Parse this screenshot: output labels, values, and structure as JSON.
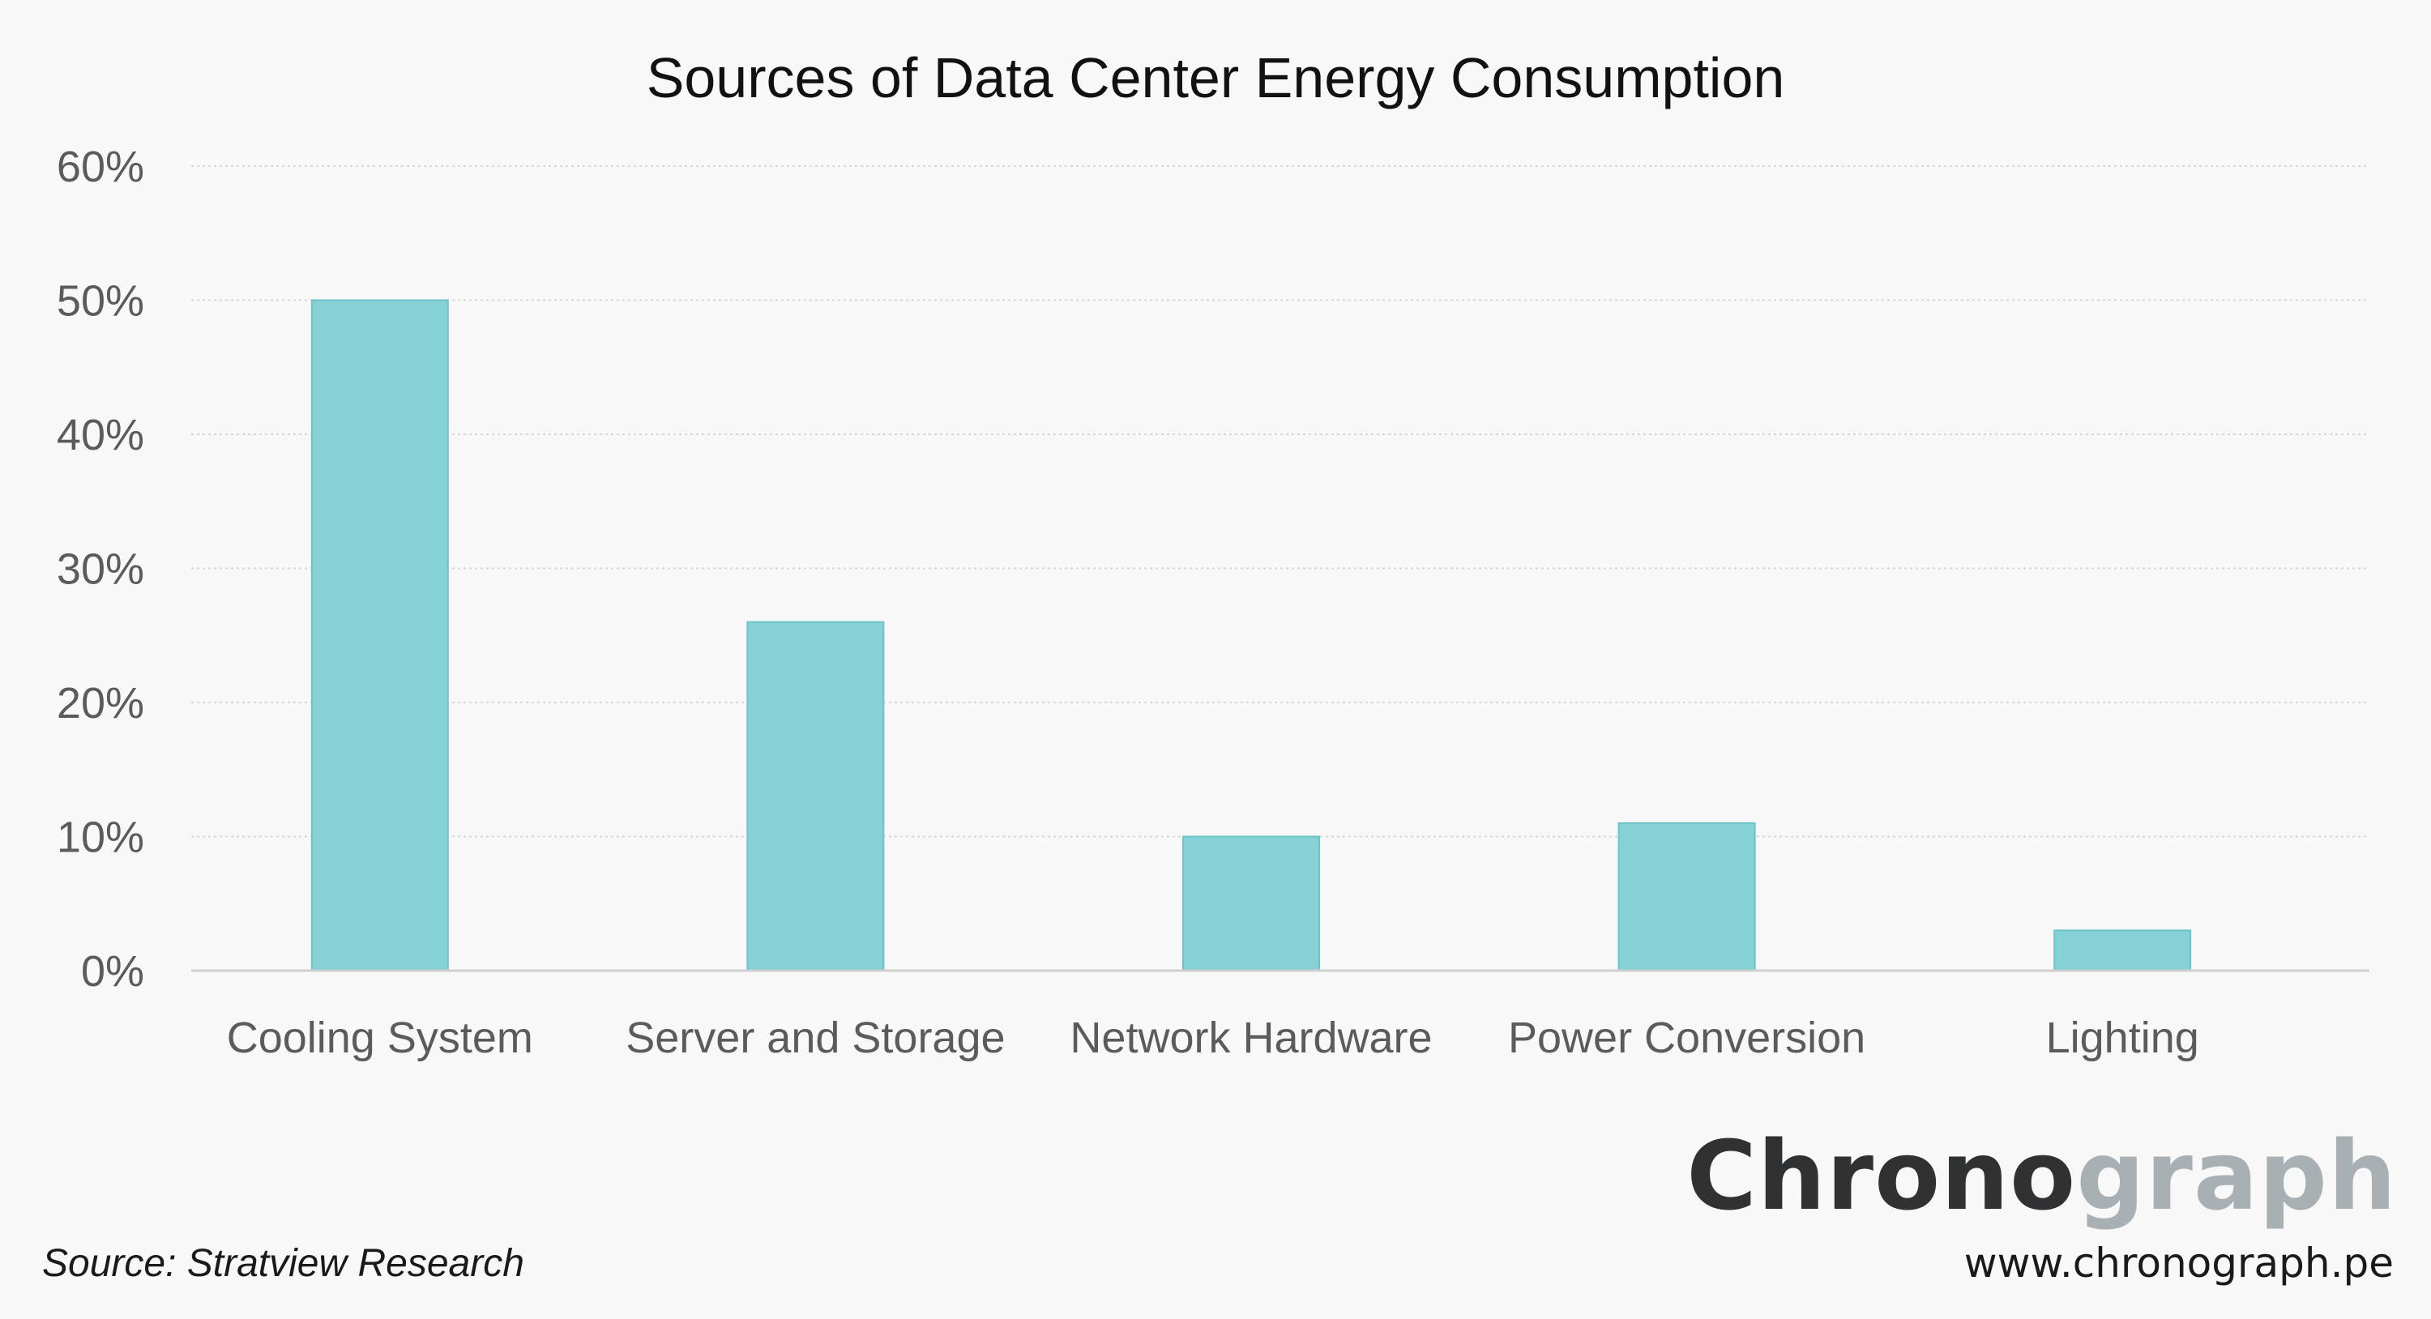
{
  "chart_data": {
    "type": "bar",
    "title": "Sources of Data Center Energy Consumption",
    "categories": [
      "Cooling System",
      "Server and Storage",
      "Network Hardware",
      "Power Conversion",
      "Lighting"
    ],
    "values": [
      50,
      26,
      10,
      11,
      3
    ],
    "ylim": [
      0,
      60
    ],
    "yticks": [
      0,
      10,
      20,
      30,
      40,
      50,
      60
    ],
    "ytick_labels": [
      "0%",
      "10%",
      "20%",
      "30%",
      "40%",
      "50%",
      "60%"
    ],
    "xlabel": "",
    "ylabel": "",
    "grid": true,
    "colors": {
      "bar_fill": "#86d1d5",
      "bar_stroke": "#6cc4c9",
      "grid": "#d6d6d6"
    }
  },
  "footer": {
    "source": "Source: Stratview Research",
    "brand_dark": "Chrono",
    "brand_light": "graph",
    "url": "www.chronograph.pe"
  }
}
